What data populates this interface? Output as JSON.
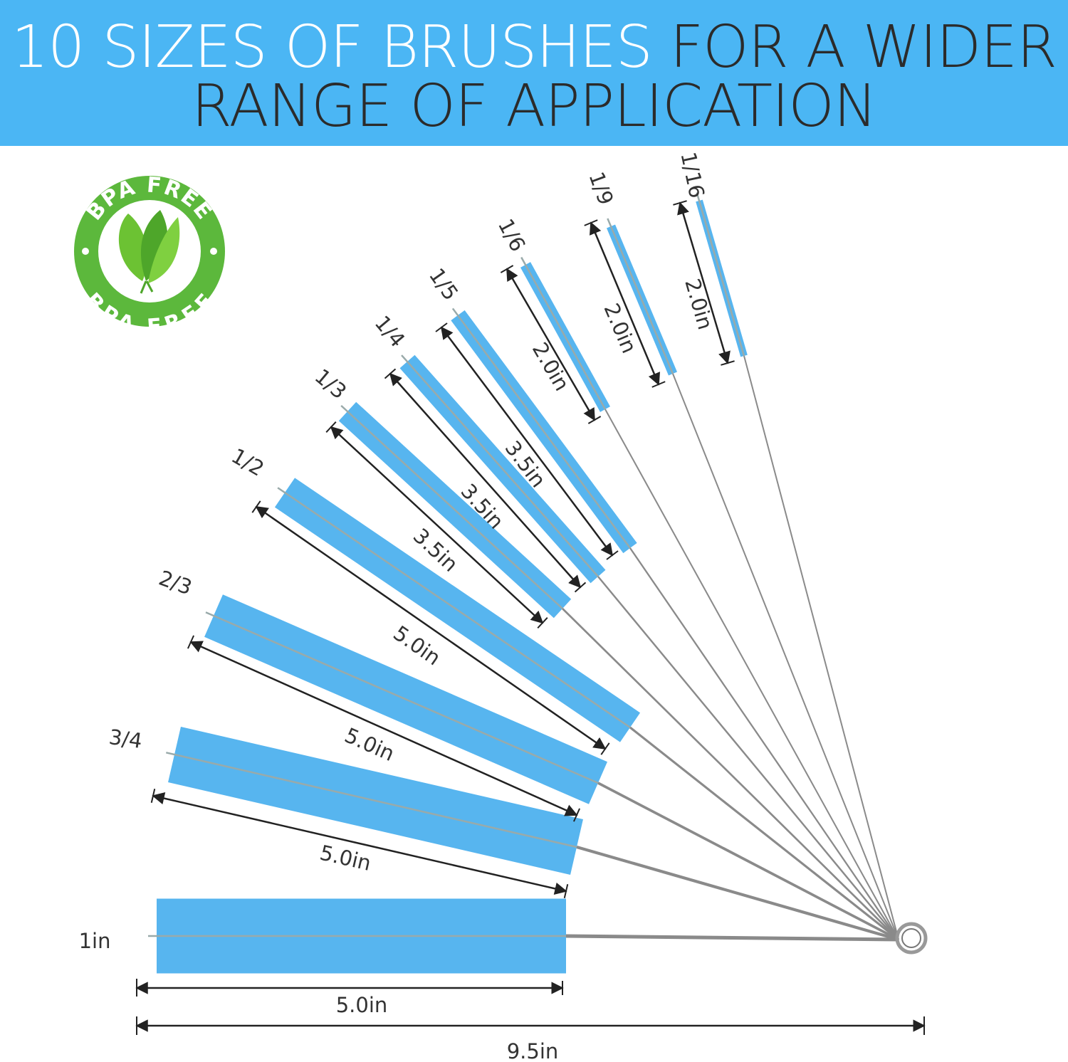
{
  "header": {
    "title_highlight": "10 SIZES OF BRUSHES",
    "title_rest": " FOR A WIDER",
    "title_line2": "RANGE OF APPLICATION",
    "background_color": "#4bb6f4"
  },
  "badge": {
    "top_text": "BPA FREE",
    "bottom_text": "BPA FREE",
    "icon": "leaf-icon",
    "color": "#5cb83c"
  },
  "brushes": [
    {
      "size": "1in",
      "length": "5.0in"
    },
    {
      "size": "3/4",
      "length": "5.0in"
    },
    {
      "size": "2/3",
      "length": "5.0in"
    },
    {
      "size": "1/2",
      "length": "5.0in"
    },
    {
      "size": "1/3",
      "length": "3.5in"
    },
    {
      "size": "1/4",
      "length": "3.5in"
    },
    {
      "size": "1/5",
      "length": "3.5in"
    },
    {
      "size": "1/6",
      "length": "2.0in"
    },
    {
      "size": "1/9",
      "length": "2.0in"
    },
    {
      "size": "1/16",
      "length": "2.0in"
    }
  ],
  "overall_length": "9.5in",
  "bristle_color": "#3aa8ec"
}
